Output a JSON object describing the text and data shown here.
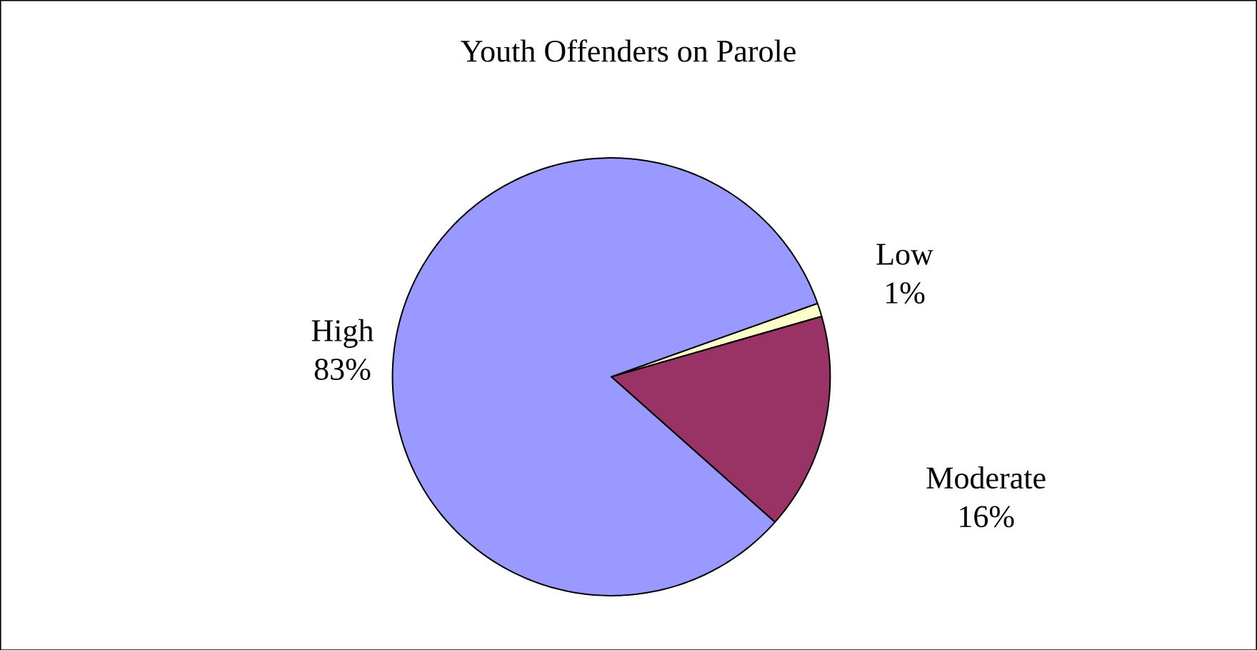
{
  "chart_data": {
    "type": "pie",
    "title": "Youth Offenders on Parole",
    "categories": [
      "Low",
      "Moderate",
      "High"
    ],
    "values": [
      1,
      16,
      83
    ],
    "value_labels": [
      "1%",
      "16%",
      "83%"
    ],
    "colors": [
      "#ffffcc",
      "#993366",
      "#9999ff"
    ]
  }
}
